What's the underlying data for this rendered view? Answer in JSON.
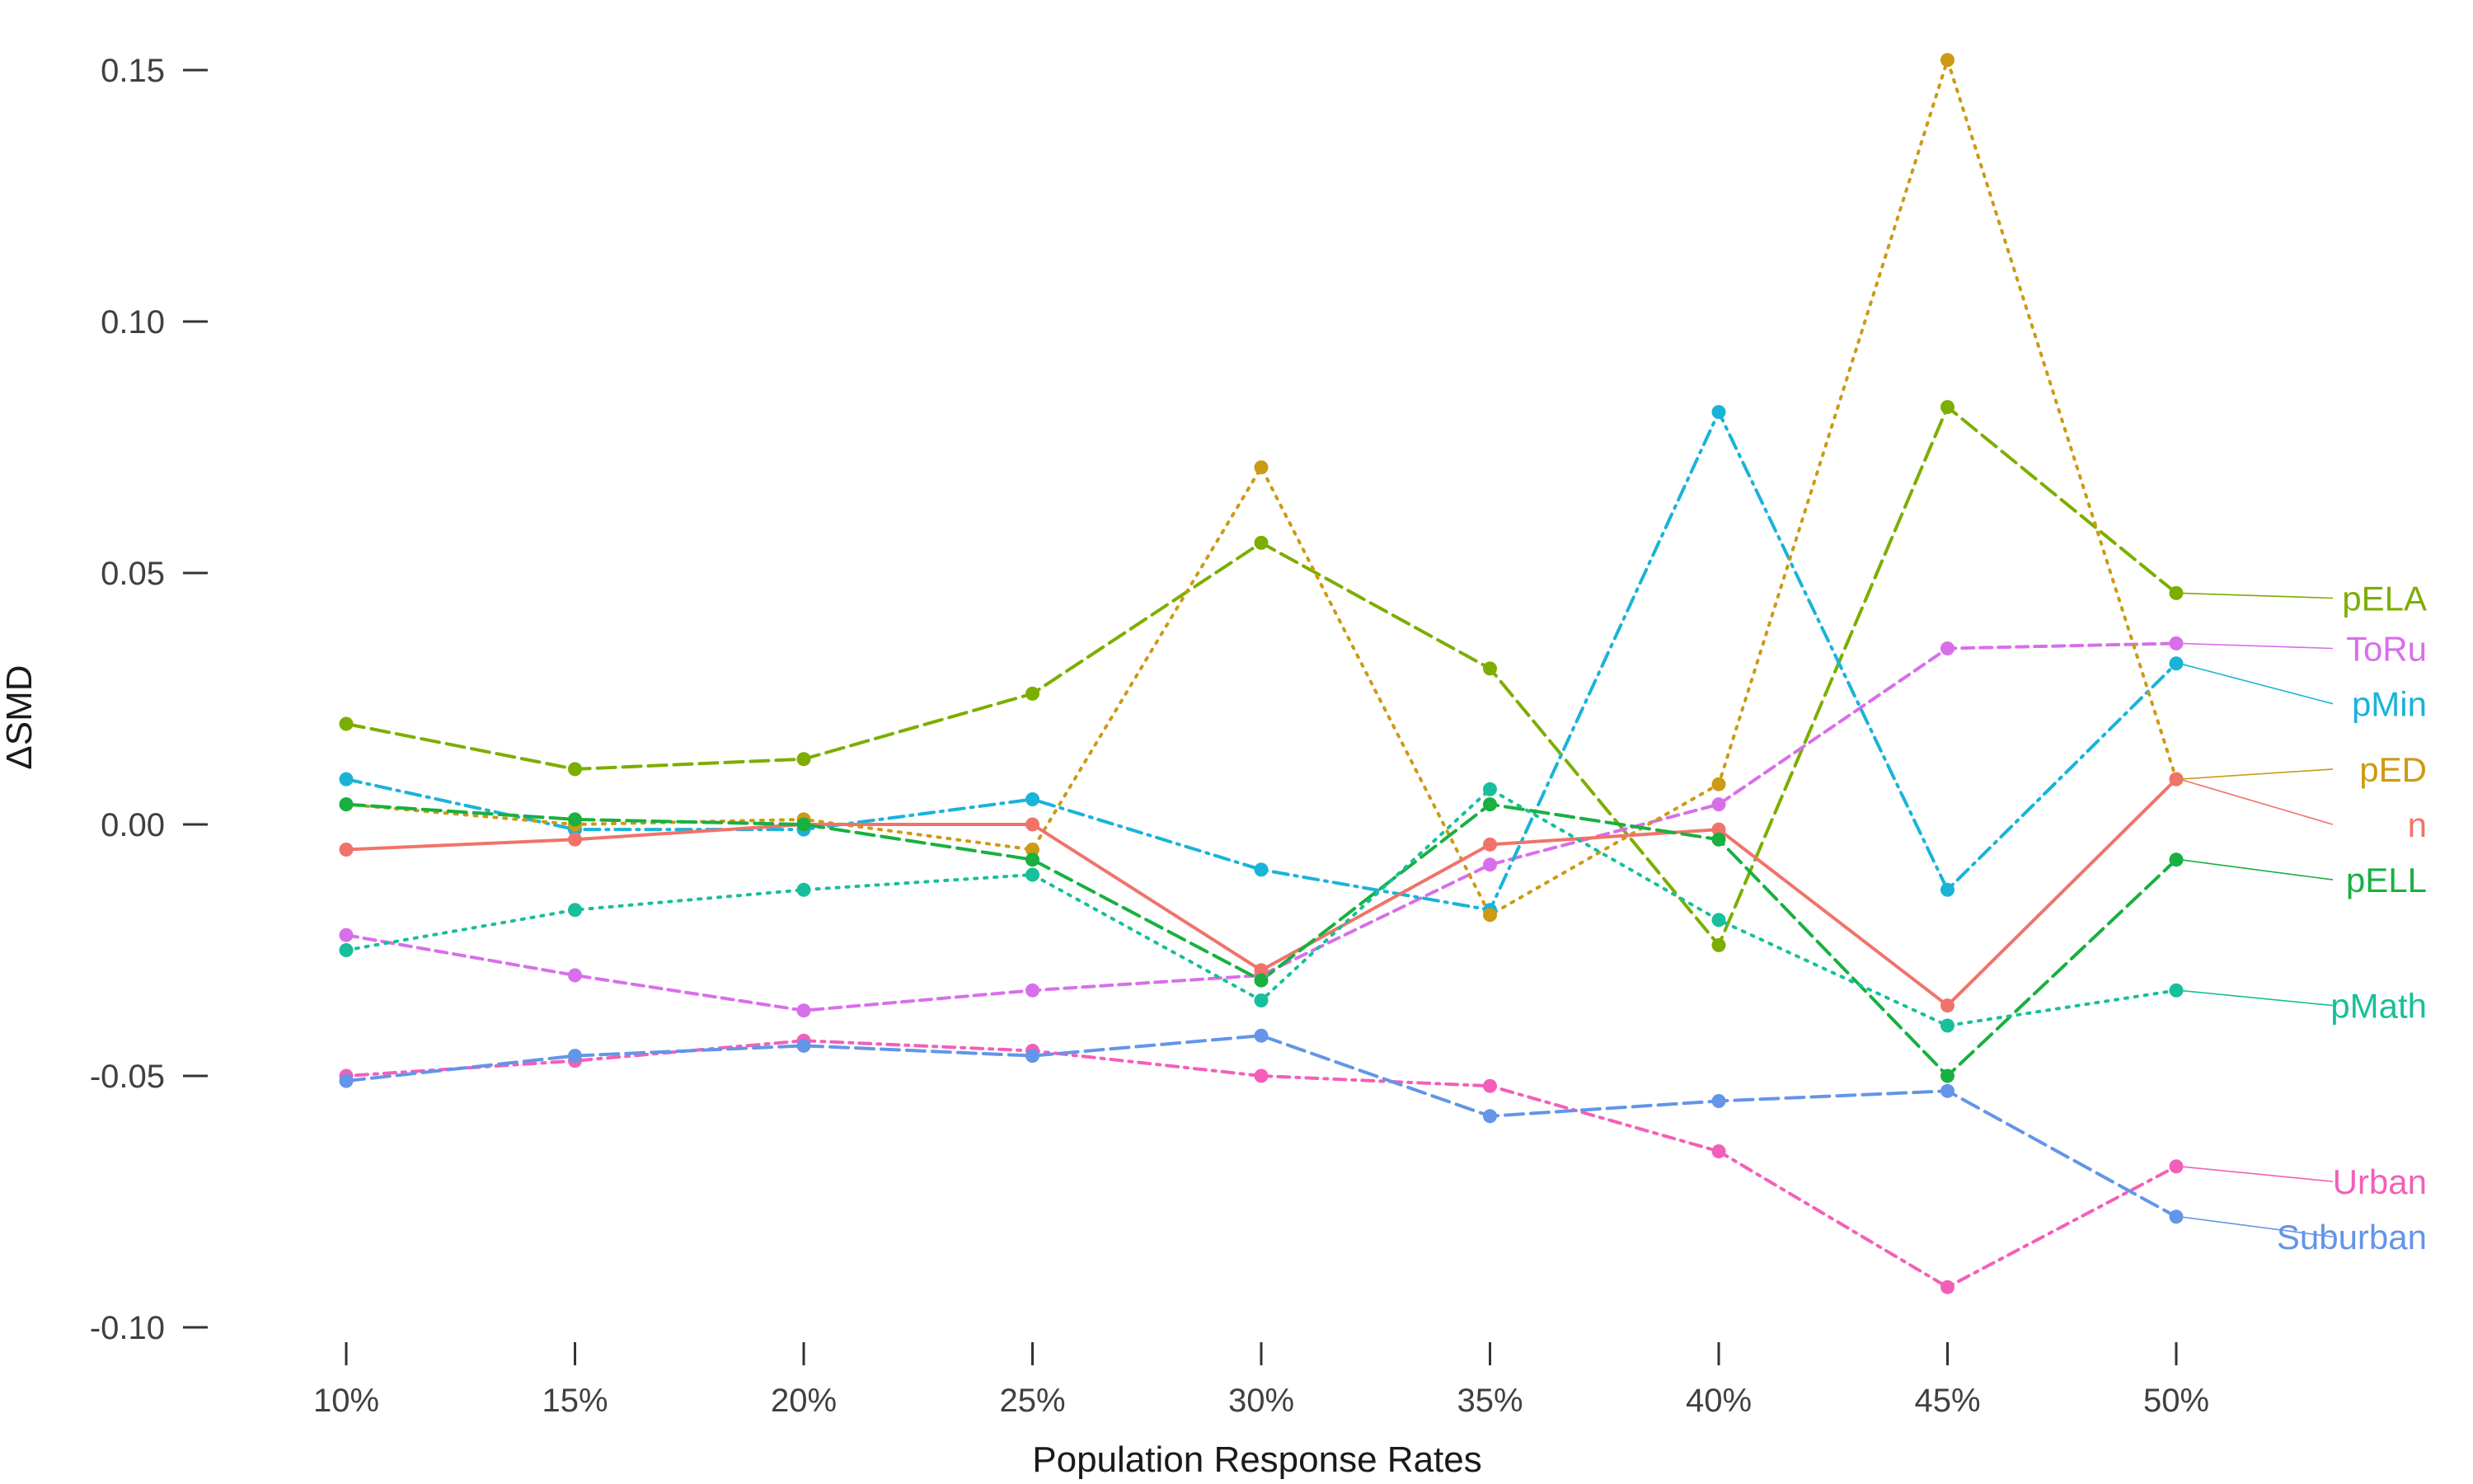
{
  "chart_data": {
    "type": "line",
    "title": "",
    "xlabel": "Population Response Rates",
    "ylabel": "ΔSMD",
    "x": [
      "10%",
      "15%",
      "20%",
      "25%",
      "30%",
      "35%",
      "40%",
      "45%",
      "50%"
    ],
    "ylim": [
      -0.105,
      0.155
    ],
    "yticks": [
      0.15,
      0.1,
      0.05,
      0.0,
      -0.05,
      -0.1
    ],
    "ytick_labels": [
      "0.15",
      "0.10",
      "0.05",
      "0.00",
      "-0.05",
      "-0.10"
    ],
    "grid": false,
    "legend": "direct labels at right end of lines",
    "series": [
      {
        "name": "pELA",
        "color": "#7CAE00",
        "dash": "long-dash",
        "values": [
          0.02,
          0.011,
          0.013,
          0.026,
          0.056,
          0.031,
          -0.024,
          0.083,
          0.046
        ]
      },
      {
        "name": "ToRu",
        "color": "#D86FEA",
        "dash": "dash",
        "values": [
          -0.022,
          -0.03,
          -0.037,
          -0.033,
          -0.03,
          -0.008,
          0.004,
          0.035,
          0.036
        ]
      },
      {
        "name": "pMin",
        "color": "#1AB3D8",
        "dash": "dash-dot",
        "values": [
          0.009,
          -0.001,
          -0.001,
          0.005,
          -0.009,
          -0.017,
          0.082,
          -0.013,
          0.032
        ]
      },
      {
        "name": "pED",
        "color": "#CC9A14",
        "dash": "dot",
        "values": [
          0.004,
          0.0,
          0.001,
          -0.005,
          0.071,
          -0.018,
          0.008,
          0.152,
          0.009
        ]
      },
      {
        "name": "n",
        "color": "#F0736A",
        "dash": "solid",
        "values": [
          -0.005,
          -0.003,
          0.0,
          0.0,
          -0.029,
          -0.004,
          -0.001,
          -0.036,
          0.009
        ]
      },
      {
        "name": "pELL",
        "color": "#18B040",
        "dash": "long-dash",
        "values": [
          0.004,
          0.001,
          0.0,
          -0.007,
          -0.031,
          0.004,
          -0.003,
          -0.05,
          -0.007
        ]
      },
      {
        "name": "pMath",
        "color": "#17BF9A",
        "dash": "dot",
        "values": [
          -0.025,
          -0.017,
          -0.013,
          -0.01,
          -0.035,
          0.007,
          -0.019,
          -0.04,
          -0.033
        ]
      },
      {
        "name": "Urban",
        "color": "#F35FB8",
        "dash": "dot-dash",
        "values": [
          -0.05,
          -0.047,
          -0.043,
          -0.045,
          -0.05,
          -0.052,
          -0.065,
          -0.092,
          -0.068
        ]
      },
      {
        "name": "Suburban",
        "color": "#6395E8",
        "dash": "long-dash",
        "values": [
          -0.051,
          -0.046,
          -0.044,
          -0.046,
          -0.042,
          -0.058,
          -0.055,
          -0.053,
          -0.078
        ]
      }
    ],
    "label_positions": [
      {
        "name": "pELA",
        "y": 0.045
      },
      {
        "name": "ToRu",
        "y": 0.035
      },
      {
        "name": "pMin",
        "y": 0.024
      },
      {
        "name": "pED",
        "y": 0.011
      },
      {
        "name": "n",
        "y": 0.0
      },
      {
        "name": "pELL",
        "y": -0.011
      },
      {
        "name": "pMath",
        "y": -0.036
      },
      {
        "name": "Urban",
        "y": -0.071
      },
      {
        "name": "Suburban",
        "y": -0.082
      }
    ]
  }
}
